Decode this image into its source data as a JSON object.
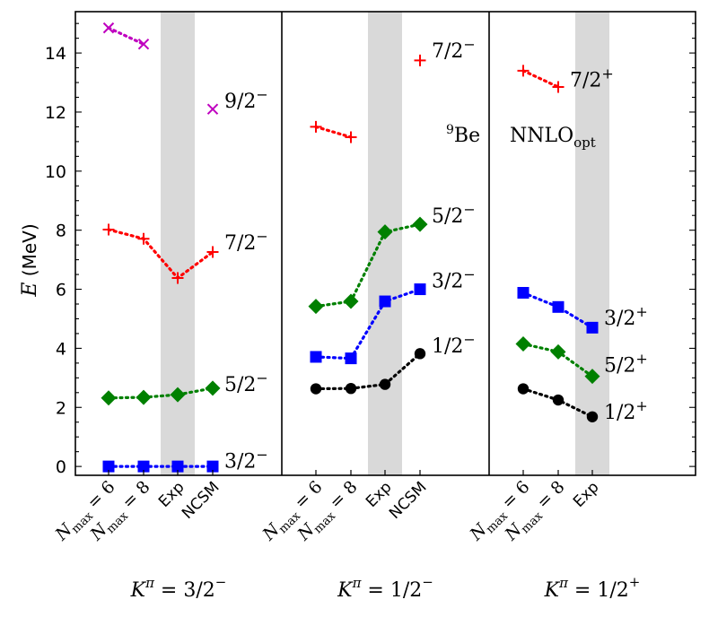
{
  "chart_data": {
    "type": "scatter",
    "title": "",
    "ylabel": "E (MeV)",
    "ylim": [
      -0.3,
      15.4
    ],
    "yticks": [
      0,
      2,
      4,
      6,
      8,
      10,
      12,
      14
    ],
    "colors": {
      "red": "#ff0000",
      "green": "#008000",
      "blue": "#0000ff",
      "black": "#000000",
      "magenta": "#bf00bf",
      "band": "#d9d9d9"
    },
    "annotations": {
      "nucleus": "9Be",
      "interaction": "NNLOopt"
    },
    "panels": [
      {
        "k_label": "Kπ = 3/2−",
        "categories": [
          "Nmax = 6",
          "Nmax = 8",
          "Exp",
          "NCSM"
        ],
        "band_category": "Exp",
        "series": [
          {
            "name": "3/2−",
            "marker": "square",
            "color": "#0000ff",
            "x": [
              0,
              1,
              2,
              3
            ],
            "y": [
              0.0,
              0.0,
              0.0,
              0.0
            ],
            "label_y": 0.2
          },
          {
            "name": "5/2−",
            "marker": "diamond",
            "color": "#008000",
            "x": [
              0,
              1,
              2,
              3
            ],
            "y": [
              2.32,
              2.34,
              2.43,
              2.65
            ],
            "label_y": 2.8
          },
          {
            "name": "7/2−",
            "marker": "plus",
            "color": "#ff0000",
            "x": [
              0,
              1,
              2,
              3
            ],
            "y": [
              8.02,
              7.71,
              6.38,
              7.26
            ],
            "label_y": 7.6
          },
          {
            "name": "9/2−",
            "marker": "x",
            "color": "#bf00bf",
            "x": [
              0,
              1
            ],
            "y": [
              14.85,
              14.3
            ],
            "label_y": null
          },
          {
            "name": "9/2−",
            "marker": "x",
            "color": "#bf00bf",
            "x": [
              3
            ],
            "y": [
              12.1
            ],
            "label_y": 12.4
          }
        ]
      },
      {
        "k_label": "Kπ = 1/2−",
        "categories": [
          "Nmax = 6",
          "Nmax = 8",
          "Exp",
          "NCSM"
        ],
        "band_category": "Exp",
        "series": [
          {
            "name": "1/2−",
            "marker": "circle",
            "color": "#000000",
            "x": [
              0,
              1,
              2,
              3
            ],
            "y": [
              2.63,
              2.64,
              2.78,
              3.82
            ],
            "label_y": 4.1
          },
          {
            "name": "3/2−",
            "marker": "square",
            "color": "#0000ff",
            "x": [
              0,
              1,
              2,
              3
            ],
            "y": [
              3.71,
              3.66,
              5.59,
              6.0
            ],
            "label_y": 6.3
          },
          {
            "name": "5/2−",
            "marker": "diamond",
            "color": "#008000",
            "x": [
              0,
              1,
              2,
              3
            ],
            "y": [
              5.42,
              5.59,
              7.94,
              8.2
            ],
            "label_y": 8.5
          },
          {
            "name": "",
            "marker": "plus",
            "color": "#ff0000",
            "x": [
              0,
              1
            ],
            "y": [
              11.5,
              11.15
            ],
            "label_y": null
          },
          {
            "name": "7/2−",
            "marker": "plus",
            "color": "#ff0000",
            "x": [
              3
            ],
            "y": [
              13.75
            ],
            "label_y": 14.1
          }
        ]
      },
      {
        "k_label": "Kπ = 1/2+",
        "categories": [
          "Nmax = 6",
          "Nmax = 8",
          "Exp"
        ],
        "band_category": "Exp",
        "series": [
          {
            "name": "1/2+",
            "marker": "circle",
            "color": "#000000",
            "x": [
              0,
              1,
              2
            ],
            "y": [
              2.63,
              2.25,
              1.68
            ],
            "label_y": 1.85
          },
          {
            "name": "5/2+",
            "marker": "diamond",
            "color": "#008000",
            "x": [
              0,
              1,
              2
            ],
            "y": [
              4.15,
              3.88,
              3.05
            ],
            "label_y": 3.45
          },
          {
            "name": "3/2+",
            "marker": "square",
            "color": "#0000ff",
            "x": [
              0,
              1,
              2
            ],
            "y": [
              5.88,
              5.4,
              4.7
            ],
            "label_y": 5.05
          },
          {
            "name": "7/2+",
            "marker": "plus",
            "color": "#ff0000",
            "x": [
              0,
              1
            ],
            "y": [
              13.4,
              12.85
            ],
            "label_y": 13.1
          }
        ]
      }
    ]
  }
}
